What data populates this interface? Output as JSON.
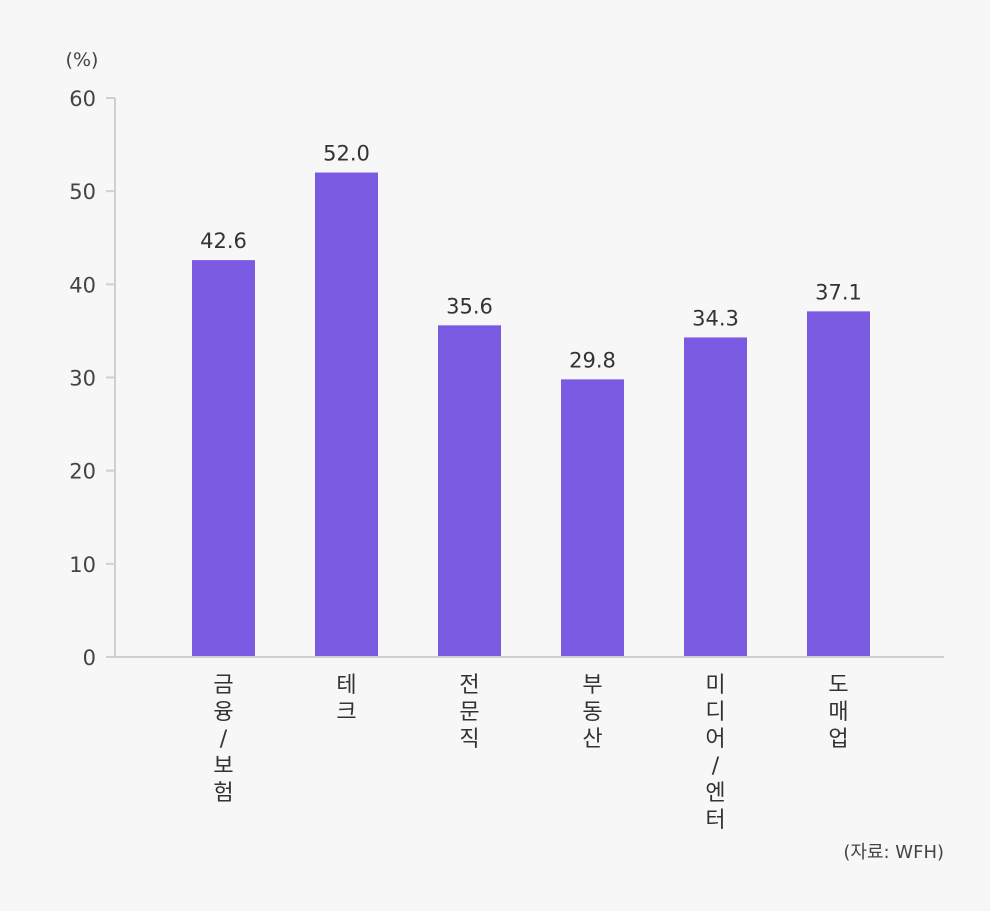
{
  "chart_data": {
    "type": "bar",
    "categories": [
      "금융/보험",
      "테크",
      "전문직",
      "부동산",
      "미디어/엔터",
      "도매업"
    ],
    "values": [
      42.6,
      52.0,
      35.6,
      29.8,
      34.3,
      37.1
    ],
    "value_labels": [
      "42.6",
      "52.0",
      "35.6",
      "29.8",
      "34.3",
      "37.1"
    ],
    "y_unit": "(%)",
    "yticks": [
      0,
      10,
      20,
      30,
      40,
      50,
      60
    ],
    "ylim": [
      0,
      60
    ],
    "grid": false,
    "source": "(자료: WFH)",
    "bar_color": "#7a5ae0",
    "axis_color": "#cfcfd4",
    "text_color": "#333333"
  }
}
